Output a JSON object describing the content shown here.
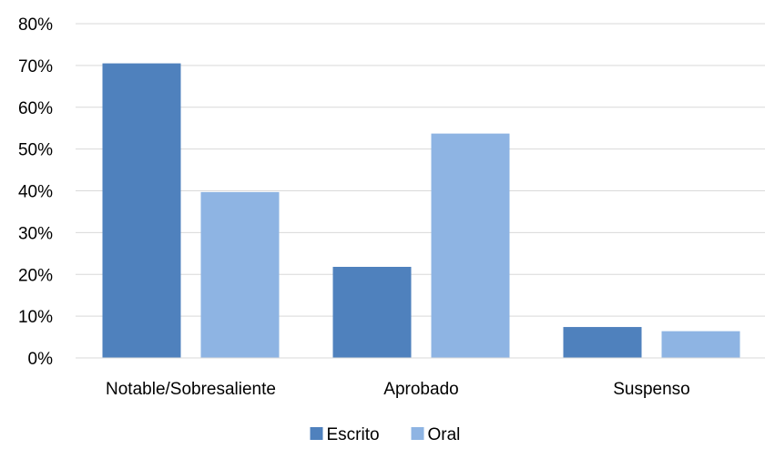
{
  "chart_data": {
    "type": "bar",
    "categories": [
      "Notable/Sobresaliente",
      "Aprobado",
      "Suspenso"
    ],
    "series": [
      {
        "name": "Escrito",
        "values": [
          70.5,
          21.8,
          7.4
        ],
        "color": "#4F81BD"
      },
      {
        "name": "Oral",
        "values": [
          39.7,
          53.7,
          6.4
        ],
        "color": "#8EB4E3"
      }
    ],
    "ylim": [
      0,
      80
    ],
    "yticks": [
      0,
      10,
      20,
      30,
      40,
      50,
      60,
      70,
      80
    ],
    "ytick_labels": [
      "0%",
      "10%",
      "20%",
      "30%",
      "40%",
      "50%",
      "60%",
      "70%",
      "80%"
    ],
    "grid": true,
    "legend_position": "bottom"
  }
}
